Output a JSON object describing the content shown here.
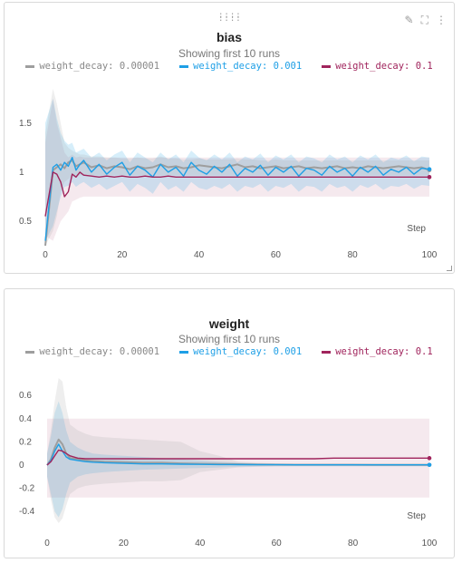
{
  "colors": {
    "gray": "#9e9e9e",
    "blue": "#1e9fe6",
    "magenta": "#a0245c"
  },
  "icons": [
    "drag-handle-icon",
    "edit-pencil-icon",
    "fullscreen-icon",
    "more-vertical-icon"
  ],
  "chart_data": [
    {
      "type": "line",
      "title": "bias",
      "subtitle": "Showing first 10 runs",
      "xlabel": "Step",
      "ylabel": "",
      "xlim": [
        0,
        100
      ],
      "ylim": [
        0.25,
        1.85
      ],
      "xticks": [
        "0",
        "20",
        "40",
        "60",
        "80",
        "100"
      ],
      "yticks": [
        "0.5",
        "1",
        "1.5"
      ],
      "legend_position": "top",
      "x": [
        0,
        2,
        3,
        4,
        5,
        6,
        7,
        8,
        9,
        10,
        12,
        14,
        16,
        18,
        20,
        22,
        24,
        26,
        28,
        30,
        32,
        34,
        36,
        38,
        40,
        42,
        44,
        46,
        48,
        50,
        52,
        54,
        56,
        58,
        60,
        62,
        64,
        66,
        68,
        70,
        72,
        74,
        76,
        78,
        80,
        82,
        84,
        86,
        88,
        90,
        92,
        94,
        96,
        98,
        100
      ],
      "series": [
        {
          "name": "weight_decay: 0.00001",
          "color": "gray",
          "values": [
            0.25,
            1.02,
            1.05,
            1.08,
            1.04,
            1.1,
            1.12,
            1.06,
            1.08,
            1.1,
            1.05,
            1.07,
            1.04,
            1.06,
            1.05,
            1.03,
            1.06,
            1.04,
            1.05,
            1.08,
            1.05,
            1.06,
            1.04,
            1.05,
            1.07,
            1.06,
            1.05,
            1.04,
            1.06,
            1.08,
            1.05,
            1.06,
            1.04,
            1.05,
            1.06,
            1.04,
            1.05,
            1.06,
            1.04,
            1.05,
            1.04,
            1.05,
            1.06,
            1.04,
            1.05,
            1.04,
            1.06,
            1.05,
            1.04,
            1.05,
            1.06,
            1.05,
            1.04,
            1.05,
            1.02
          ],
          "band_upper": [
            1.4,
            1.85,
            1.7,
            1.5,
            1.3,
            1.25,
            1.22,
            1.2,
            1.18,
            1.18,
            1.16,
            1.16,
            1.15,
            1.15,
            1.14,
            1.14,
            1.15,
            1.14,
            1.14,
            1.16,
            1.14,
            1.14,
            1.13,
            1.13,
            1.14,
            1.13,
            1.13,
            1.13,
            1.13,
            1.14,
            1.13,
            1.13,
            1.12,
            1.12,
            1.13,
            1.12,
            1.12,
            1.12,
            1.12,
            1.12,
            1.12,
            1.12,
            1.12,
            1.12,
            1.12,
            1.12,
            1.12,
            1.12,
            1.12,
            1.12,
            1.12,
            1.12,
            1.12,
            1.12,
            1.12
          ],
          "band_lower": [
            0.25,
            0.4,
            0.55,
            0.8,
            0.9,
            0.93,
            0.95,
            0.96,
            0.97,
            0.97,
            0.97,
            0.97,
            0.97,
            0.97,
            0.97,
            0.97,
            0.97,
            0.97,
            0.97,
            0.97,
            0.97,
            0.97,
            0.97,
            0.97,
            0.97,
            0.97,
            0.97,
            0.97,
            0.97,
            0.97,
            0.97,
            0.97,
            0.97,
            0.97,
            0.97,
            0.97,
            0.97,
            0.97,
            0.97,
            0.97,
            0.97,
            0.97,
            0.97,
            0.97,
            0.97,
            0.97,
            0.97,
            0.97,
            0.97,
            0.97,
            0.97,
            0.97,
            0.97,
            0.97,
            0.97
          ]
        },
        {
          "name": "weight_decay: 0.001",
          "color": "blue",
          "values": [
            0.3,
            1.05,
            1.08,
            1.02,
            1.1,
            1.06,
            1.15,
            1.02,
            1.08,
            1.12,
            1.0,
            1.08,
            0.98,
            1.05,
            1.1,
            0.97,
            1.06,
            1.02,
            0.95,
            1.08,
            1.0,
            1.05,
            0.96,
            1.1,
            1.02,
            0.98,
            1.06,
            1.0,
            1.08,
            0.96,
            1.04,
            1.0,
            1.07,
            0.97,
            1.05,
            1.0,
            1.06,
            0.96,
            1.04,
            1.02,
            0.97,
            1.06,
            1.0,
            1.04,
            0.96,
            1.05,
            1.0,
            1.06,
            0.97,
            1.03,
            1.0,
            1.05,
            0.98,
            1.04,
            1.03
          ],
          "band_upper": [
            1.5,
            1.75,
            1.55,
            1.4,
            1.32,
            1.28,
            1.3,
            1.2,
            1.22,
            1.24,
            1.15,
            1.2,
            1.12,
            1.18,
            1.22,
            1.1,
            1.2,
            1.15,
            1.1,
            1.2,
            1.13,
            1.18,
            1.1,
            1.22,
            1.15,
            1.12,
            1.18,
            1.13,
            1.2,
            1.1,
            1.16,
            1.13,
            1.19,
            1.1,
            1.17,
            1.13,
            1.18,
            1.1,
            1.16,
            1.14,
            1.1,
            1.18,
            1.13,
            1.16,
            1.1,
            1.17,
            1.13,
            1.18,
            1.1,
            1.15,
            1.13,
            1.17,
            1.11,
            1.16,
            1.15
          ],
          "band_lower": [
            0.3,
            0.45,
            0.6,
            0.75,
            0.85,
            0.86,
            0.9,
            0.85,
            0.88,
            0.9,
            0.84,
            0.88,
            0.82,
            0.86,
            0.9,
            0.8,
            0.88,
            0.84,
            0.78,
            0.9,
            0.82,
            0.86,
            0.8,
            0.9,
            0.84,
            0.82,
            0.86,
            0.83,
            0.88,
            0.8,
            0.86,
            0.84,
            0.88,
            0.8,
            0.86,
            0.84,
            0.88,
            0.8,
            0.86,
            0.85,
            0.8,
            0.88,
            0.84,
            0.86,
            0.8,
            0.87,
            0.84,
            0.88,
            0.82,
            0.86,
            0.85,
            0.88,
            0.83,
            0.87,
            0.86
          ]
        },
        {
          "name": "weight_decay: 0.1",
          "color": "magenta",
          "values": [
            0.55,
            1.0,
            0.98,
            0.9,
            0.75,
            0.8,
            0.98,
            0.95,
            1.0,
            0.97,
            0.96,
            0.95,
            0.96,
            0.95,
            0.96,
            0.95,
            0.95,
            0.96,
            0.95,
            0.95,
            0.96,
            0.95,
            0.95,
            0.95,
            0.95,
            0.95,
            0.95,
            0.95,
            0.95,
            0.95,
            0.95,
            0.95,
            0.95,
            0.95,
            0.95,
            0.95,
            0.95,
            0.95,
            0.95,
            0.95,
            0.95,
            0.95,
            0.95,
            0.95,
            0.95,
            0.95,
            0.95,
            0.95,
            0.95,
            0.95,
            0.95,
            0.95,
            0.95,
            0.95,
            0.95
          ],
          "band_upper": [
            1.3,
            1.75,
            1.5,
            1.35,
            1.2,
            1.15,
            1.18,
            1.15,
            1.16,
            1.15,
            1.15,
            1.15,
            1.15,
            1.15,
            1.15,
            1.15,
            1.15,
            1.15,
            1.15,
            1.15,
            1.15,
            1.15,
            1.15,
            1.15,
            1.15,
            1.15,
            1.15,
            1.15,
            1.15,
            1.15,
            1.15,
            1.15,
            1.15,
            1.15,
            1.15,
            1.15,
            1.15,
            1.15,
            1.15,
            1.15,
            1.15,
            1.15,
            1.15,
            1.15,
            1.15,
            1.15,
            1.15,
            1.15,
            1.15,
            1.15,
            1.15,
            1.15,
            1.15,
            1.15,
            1.15
          ],
          "band_lower": [
            0.35,
            0.3,
            0.4,
            0.5,
            0.55,
            0.6,
            0.7,
            0.72,
            0.74,
            0.75,
            0.75,
            0.75,
            0.75,
            0.75,
            0.75,
            0.75,
            0.75,
            0.75,
            0.75,
            0.75,
            0.75,
            0.75,
            0.75,
            0.75,
            0.75,
            0.75,
            0.75,
            0.75,
            0.75,
            0.75,
            0.75,
            0.75,
            0.75,
            0.75,
            0.75,
            0.75,
            0.75,
            0.75,
            0.75,
            0.75,
            0.75,
            0.75,
            0.75,
            0.75,
            0.75,
            0.75,
            0.75,
            0.75,
            0.75,
            0.75,
            0.75,
            0.75,
            0.75,
            0.75,
            0.75
          ]
        }
      ]
    },
    {
      "type": "line",
      "title": "weight",
      "subtitle": "Showing first 10 runs",
      "xlabel": "Step",
      "ylabel": "",
      "xlim": [
        0,
        100
      ],
      "ylim": [
        -0.5,
        0.75
      ],
      "xticks": [
        "0",
        "20",
        "40",
        "60",
        "80",
        "100"
      ],
      "yticks": [
        "-0.4",
        "-0.2",
        "0",
        "0.2",
        "0.4",
        "0.6"
      ],
      "legend_position": "top",
      "x": [
        0,
        1,
        2,
        3,
        4,
        5,
        6,
        8,
        10,
        12,
        15,
        20,
        25,
        30,
        35,
        40,
        45,
        50,
        55,
        60,
        65,
        70,
        75,
        80,
        85,
        90,
        95,
        100
      ],
      "series": [
        {
          "name": "weight_decay: 0.00001",
          "color": "gray",
          "values": [
            0.0,
            0.05,
            0.15,
            0.22,
            0.18,
            0.1,
            0.06,
            0.05,
            0.04,
            0.035,
            0.03,
            0.025,
            0.02,
            0.02,
            0.015,
            0.012,
            0.01,
            0.008,
            0.005,
            0.004,
            0.003,
            0.003,
            0.003,
            0.003,
            0.002,
            0.002,
            0.002,
            0.002
          ],
          "band_upper": [
            0.1,
            0.3,
            0.55,
            0.75,
            0.72,
            0.5,
            0.35,
            0.3,
            0.27,
            0.25,
            0.24,
            0.23,
            0.22,
            0.21,
            0.2,
            0.12,
            0.08,
            0.03,
            0.02,
            0.015,
            0.012,
            0.012,
            0.012,
            0.012,
            0.012,
            0.012,
            0.012,
            0.012
          ],
          "band_lower": [
            -0.1,
            -0.3,
            -0.45,
            -0.5,
            -0.46,
            -0.35,
            -0.25,
            -0.2,
            -0.18,
            -0.17,
            -0.16,
            -0.15,
            -0.14,
            -0.14,
            -0.13,
            -0.06,
            -0.04,
            -0.02,
            -0.015,
            -0.012,
            -0.01,
            -0.01,
            -0.01,
            -0.01,
            -0.01,
            -0.01,
            -0.01,
            -0.01
          ]
        },
        {
          "name": "weight_decay: 0.001",
          "color": "blue",
          "values": [
            0.0,
            0.04,
            0.12,
            0.18,
            0.12,
            0.07,
            0.05,
            0.04,
            0.03,
            0.025,
            0.02,
            0.015,
            0.01,
            0.01,
            0.008,
            0.006,
            0.005,
            0.004,
            0.003,
            0.003,
            0.002,
            0.002,
            0.002,
            0.002,
            0.002,
            0.002,
            0.002,
            0.002
          ],
          "band_upper": [
            0.1,
            0.25,
            0.45,
            0.55,
            0.45,
            0.3,
            0.2,
            0.15,
            0.12,
            0.1,
            0.09,
            0.08,
            0.07,
            0.06,
            0.05,
            0.04,
            0.03,
            0.02,
            0.015,
            0.012,
            0.01,
            0.01,
            0.01,
            0.01,
            0.01,
            0.01,
            0.01,
            0.01
          ],
          "band_lower": [
            -0.1,
            -0.25,
            -0.4,
            -0.45,
            -0.38,
            -0.25,
            -0.15,
            -0.1,
            -0.08,
            -0.07,
            -0.06,
            -0.05,
            -0.04,
            -0.035,
            -0.03,
            -0.025,
            -0.02,
            -0.015,
            -0.012,
            -0.01,
            -0.01,
            -0.01,
            -0.01,
            -0.01,
            -0.01,
            -0.01,
            -0.01,
            -0.01
          ]
        },
        {
          "name": "weight_decay: 0.1",
          "color": "magenta",
          "values": [
            0.0,
            0.03,
            0.08,
            0.13,
            0.12,
            0.1,
            0.08,
            0.06,
            0.055,
            0.055,
            0.055,
            0.055,
            0.055,
            0.055,
            0.055,
            0.055,
            0.055,
            0.055,
            0.055,
            0.055,
            0.055,
            0.055,
            0.06,
            0.06,
            0.06,
            0.06,
            0.06,
            0.06
          ],
          "band_upper": [
            0.4,
            0.4,
            0.4,
            0.4,
            0.4,
            0.4,
            0.4,
            0.4,
            0.4,
            0.4,
            0.4,
            0.4,
            0.4,
            0.4,
            0.4,
            0.4,
            0.4,
            0.4,
            0.4,
            0.4,
            0.4,
            0.4,
            0.4,
            0.4,
            0.4,
            0.4,
            0.4,
            0.4
          ],
          "band_lower": [
            -0.28,
            -0.28,
            -0.28,
            -0.28,
            -0.28,
            -0.28,
            -0.28,
            -0.28,
            -0.28,
            -0.28,
            -0.28,
            -0.28,
            -0.28,
            -0.28,
            -0.28,
            -0.28,
            -0.28,
            -0.28,
            -0.28,
            -0.28,
            -0.28,
            -0.28,
            -0.28,
            -0.28,
            -0.28,
            -0.28,
            -0.28,
            -0.28
          ]
        }
      ]
    }
  ]
}
